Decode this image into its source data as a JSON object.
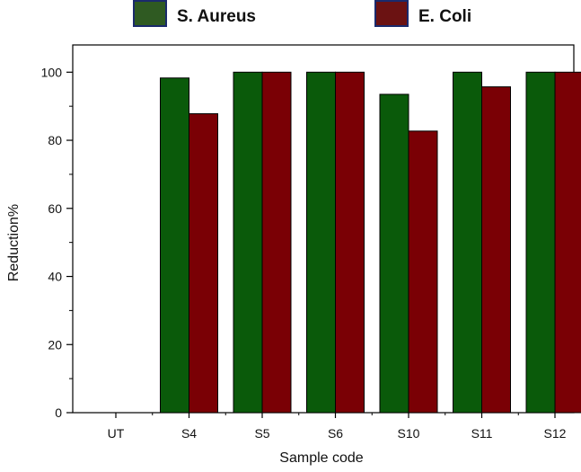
{
  "colors": {
    "s_aureus": "#0a5a0a",
    "e_coli": "#7a0005",
    "legend_s_aureus": "#2f5a22",
    "legend_e_coli": "#6b1212"
  },
  "chart_data": {
    "type": "bar",
    "categories": [
      "UT",
      "S4",
      "S5",
      "S6",
      "S10",
      "S11",
      "S12"
    ],
    "series": [
      {
        "name": "S. Aureus",
        "values": [
          0,
          98.3,
          100,
          100,
          93.5,
          100,
          100
        ]
      },
      {
        "name": "E. Coli",
        "values": [
          0,
          87.8,
          100,
          100,
          82.7,
          95.7,
          100
        ]
      }
    ],
    "xlabel": "Sample code",
    "ylabel": "Reduction%",
    "ylim": [
      0,
      108
    ],
    "yticks": [
      "0",
      "20",
      "40",
      "60",
      "80",
      "100"
    ],
    "legend_position": "top"
  }
}
